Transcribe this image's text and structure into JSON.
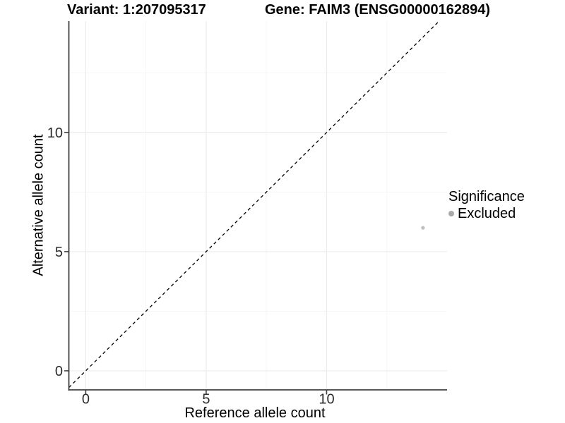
{
  "chart_data": {
    "type": "scatter",
    "title_left": "Variant: 1:207095317",
    "title_right": "Gene: FAIM3 (ENSG00000162894)",
    "xlabel": "Reference allele count",
    "ylabel": "Alternative allele count",
    "xlim": [
      -0.7,
      15.0
    ],
    "ylim": [
      -0.8,
      14.67
    ],
    "x_major_ticks": [
      0,
      5,
      10
    ],
    "y_major_ticks": [
      0,
      5,
      10
    ],
    "x_minor_gridlines": [
      2.5,
      7.5,
      12.5
    ],
    "y_minor_gridlines": [
      2.5,
      7.5,
      12.5
    ],
    "grid": true,
    "identity_line": {
      "style": "dashed",
      "slope": 1,
      "intercept": 0,
      "color": "#000000"
    },
    "series": [
      {
        "name": "Excluded",
        "color": "#c0c0c0",
        "point_radius": 2.6,
        "points": [
          {
            "x": 14,
            "y": 6
          }
        ]
      }
    ],
    "legend": {
      "title": "Significance",
      "position": "right",
      "items": [
        {
          "label": "Excluded",
          "color": "#a9a9a9"
        }
      ]
    },
    "colors": {
      "grid_major": "#ebebeb",
      "grid_minor": "#f5f5f5",
      "axis_line": "#404040",
      "tick_mark": "#404040",
      "tick_label": "#2b2b2b",
      "background": "#ffffff"
    }
  }
}
